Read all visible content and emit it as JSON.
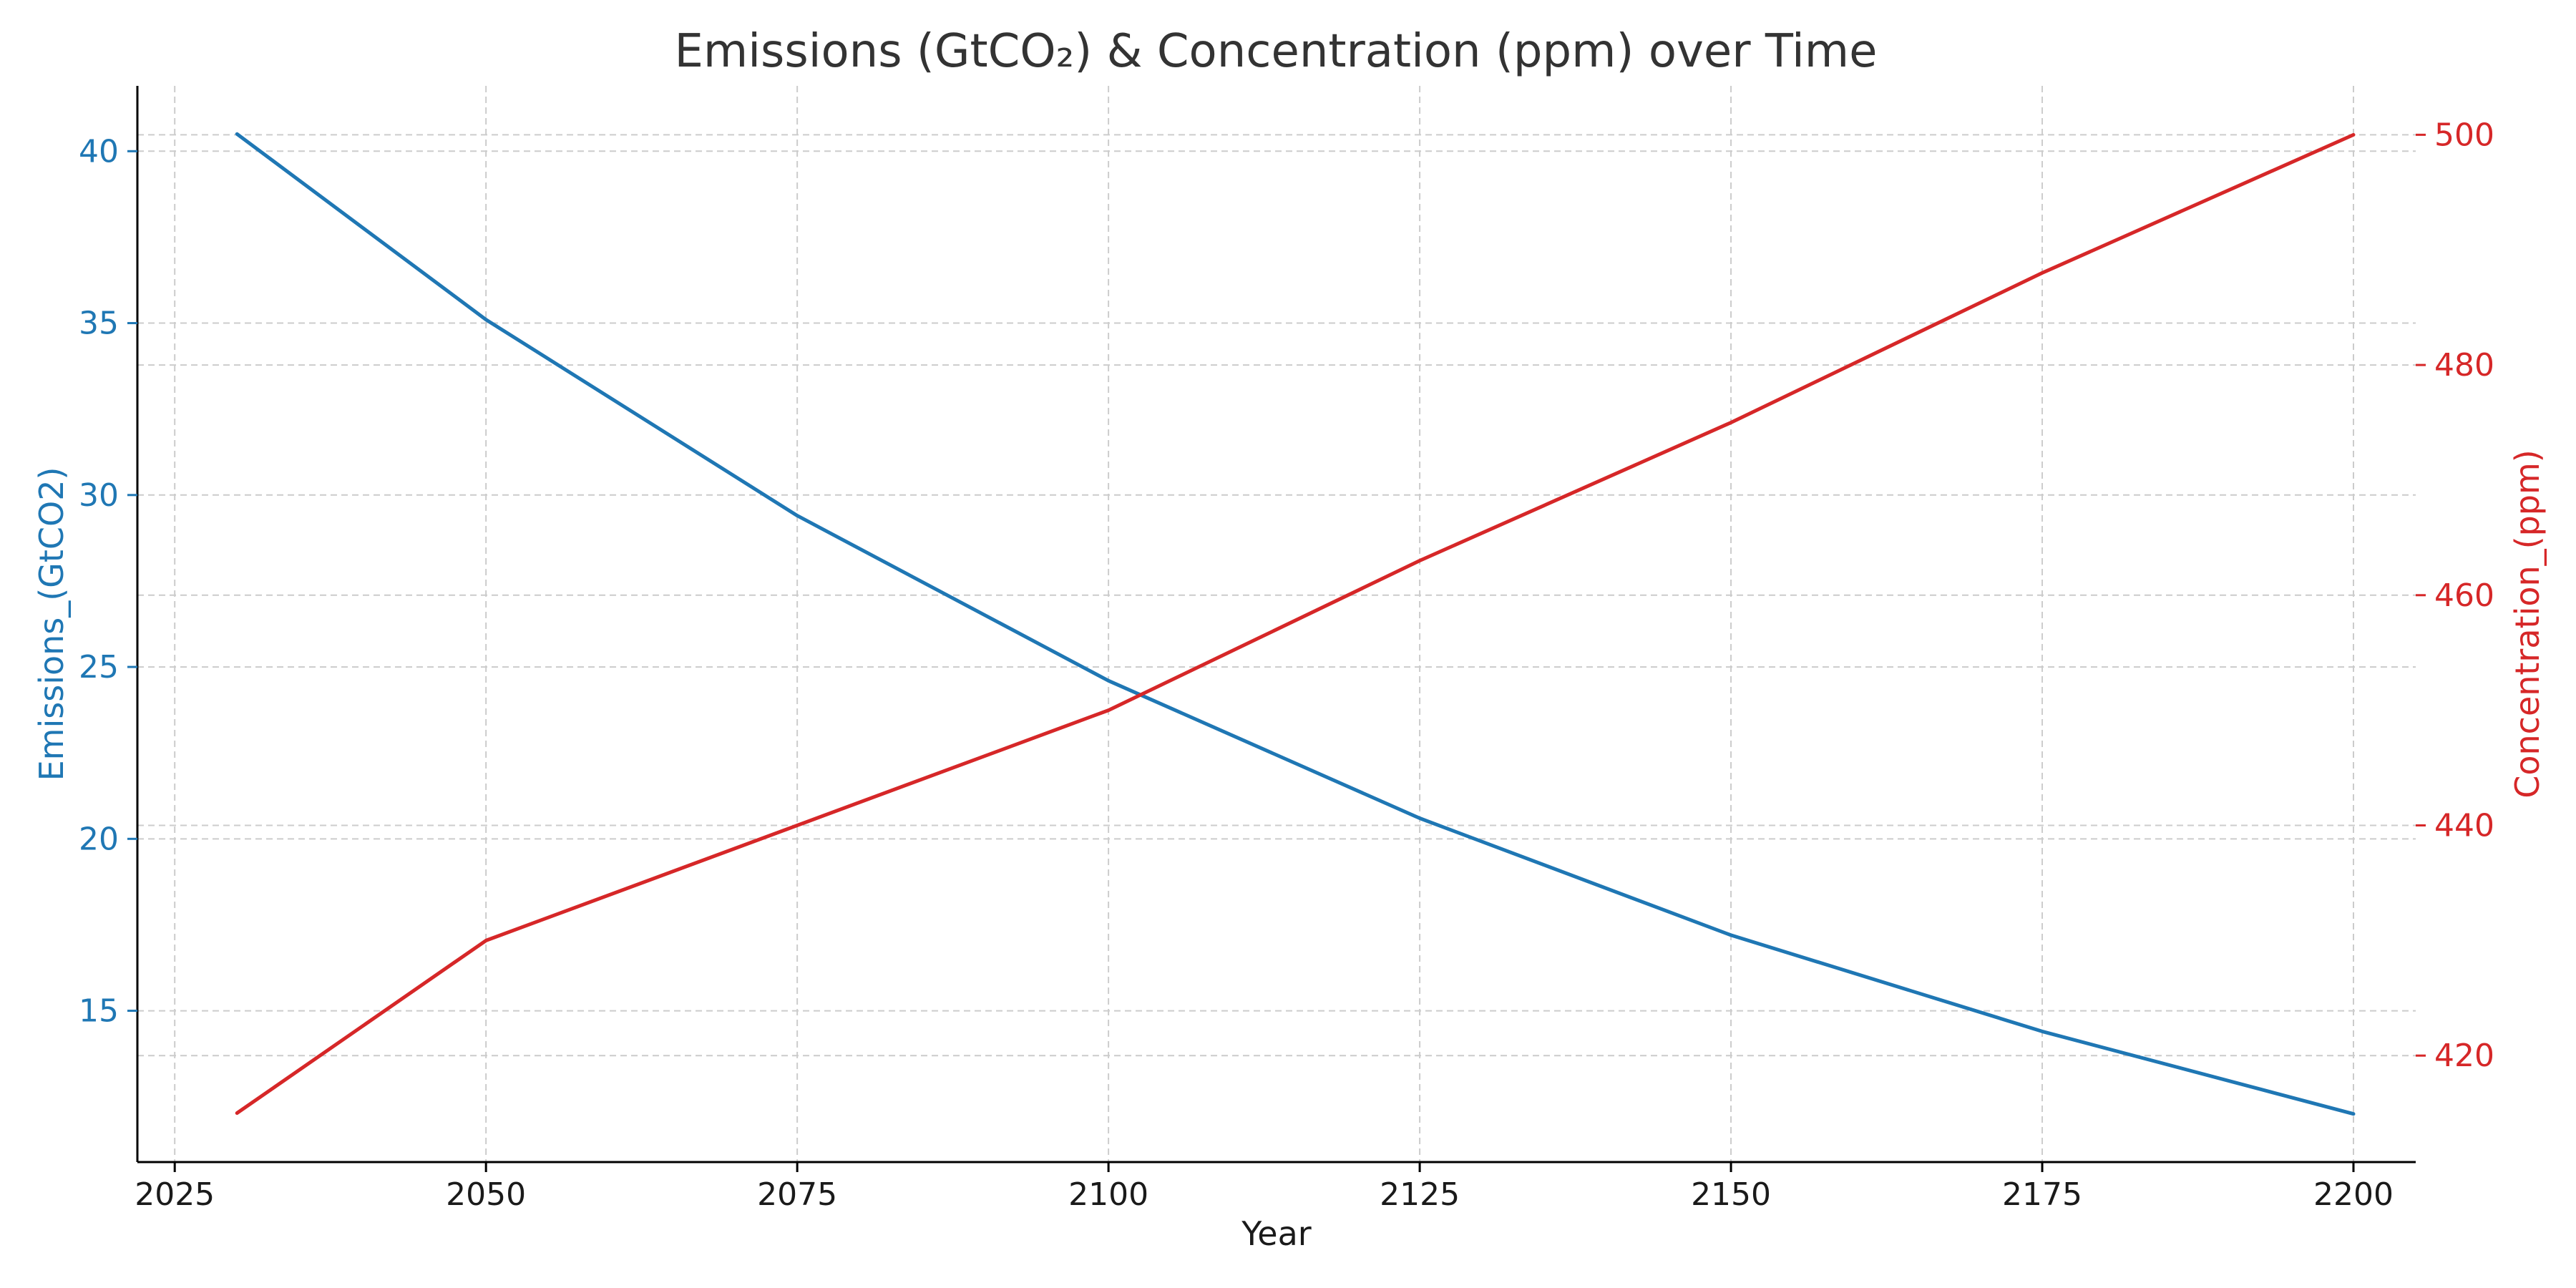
{
  "chart_data": {
    "type": "line",
    "title": "Emissions (GtCO₂) & Concentration (ppm) over Time",
    "xlabel": "Year",
    "x": [
      2030,
      2050,
      2075,
      2100,
      2125,
      2150,
      2175,
      2200
    ],
    "xticks": [
      2025,
      2050,
      2075,
      2100,
      2125,
      2150,
      2175,
      2200
    ],
    "xlim": [
      2022,
      2205
    ],
    "grid": true,
    "series": [
      {
        "name": "Emissions_(GtCO2)",
        "axis": "left",
        "color": "#1f77b4",
        "values": [
          40.5,
          35.1,
          29.4,
          24.6,
          20.6,
          17.2,
          14.4,
          12.0
        ]
      },
      {
        "name": "Concentration_(ppm)",
        "axis": "right",
        "color": "#d62728",
        "values": [
          415,
          430,
          440,
          450,
          463,
          475,
          488,
          500
        ]
      }
    ],
    "y_left": {
      "label": "Emissions_(GtCO2)",
      "color": "#1f77b4",
      "ticks": [
        15,
        20,
        25,
        30,
        35,
        40
      ],
      "lim": [
        10.6,
        41.9
      ]
    },
    "y_right": {
      "label": "Concentration_(ppm)",
      "color": "#d62728",
      "ticks": [
        420,
        440,
        460,
        480,
        500
      ],
      "lim": [
        410.75,
        504.25
      ]
    }
  }
}
